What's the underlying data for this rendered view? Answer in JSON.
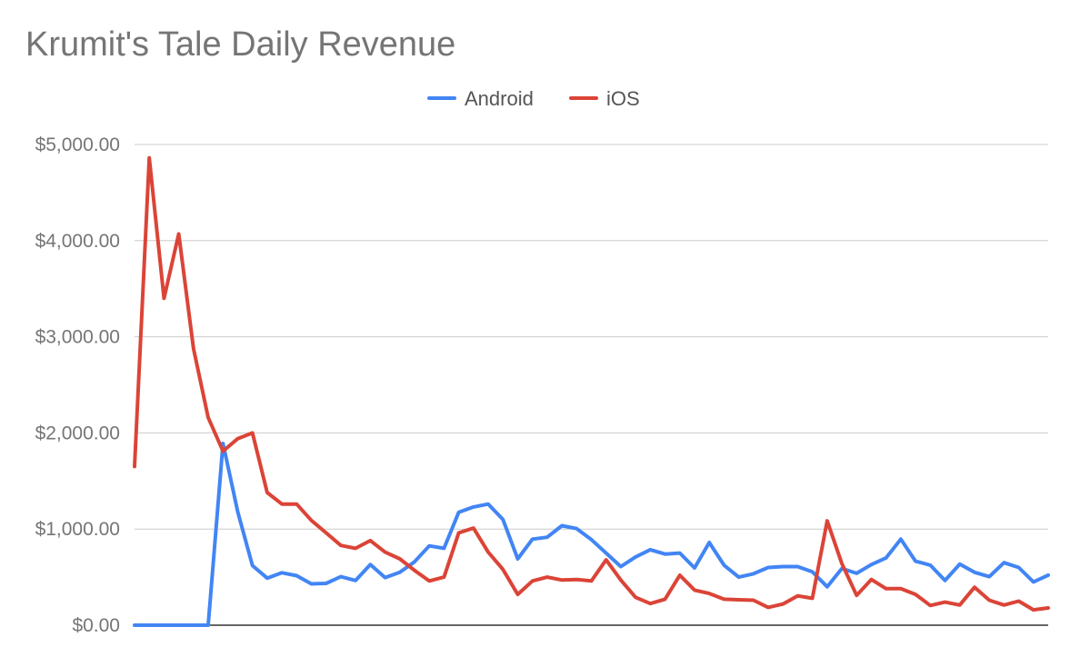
{
  "chart_data": {
    "type": "line",
    "title": "Krumit's Tale Daily Revenue",
    "xlabel": "",
    "ylabel": "",
    "ylim": [
      0,
      5000
    ],
    "yticks": [
      {
        "value": 0,
        "label": "$0.00"
      },
      {
        "value": 1000,
        "label": "$1,000.00"
      },
      {
        "value": 2000,
        "label": "$2,000.00"
      },
      {
        "value": 3000,
        "label": "$3,000.00"
      },
      {
        "value": 4000,
        "label": "$4,000.00"
      },
      {
        "value": 5000,
        "label": "$5,000.00"
      }
    ],
    "grid": true,
    "legend_position": "top",
    "x": [
      1,
      2,
      3,
      4,
      5,
      6,
      7,
      8,
      9,
      10,
      11,
      12,
      13,
      14,
      15,
      16,
      17,
      18,
      19,
      20,
      21,
      22,
      23,
      24,
      25,
      26,
      27,
      28,
      29,
      30,
      31,
      32,
      33,
      34,
      35,
      36,
      37,
      38,
      39,
      40,
      41,
      42,
      43,
      44,
      45,
      46,
      47,
      48,
      49,
      50,
      51,
      52,
      53,
      54,
      55,
      56,
      57,
      58,
      59,
      60,
      61,
      62,
      63
    ],
    "series": [
      {
        "name": "Android",
        "color": "#4285F4",
        "values": [
          0,
          0,
          0,
          0,
          0,
          0,
          1890,
          1180,
          620,
          490,
          545,
          515,
          430,
          435,
          505,
          465,
          630,
          495,
          550,
          660,
          825,
          800,
          1175,
          1230,
          1260,
          1100,
          690,
          895,
          915,
          1035,
          1005,
          890,
          750,
          610,
          710,
          785,
          740,
          750,
          595,
          860,
          625,
          500,
          535,
          600,
          610,
          610,
          555,
          400,
          590,
          540,
          630,
          700,
          895,
          665,
          625,
          465,
          635,
          550,
          505,
          650,
          600,
          450,
          520
        ]
      },
      {
        "name": "iOS",
        "color": "#DB4437",
        "values": [
          1650,
          4860,
          3400,
          4070,
          2880,
          2160,
          1810,
          1940,
          2000,
          1380,
          1260,
          1260,
          1090,
          960,
          830,
          800,
          880,
          760,
          690,
          570,
          460,
          500,
          960,
          1010,
          760,
          580,
          320,
          460,
          500,
          470,
          475,
          460,
          680,
          470,
          290,
          225,
          270,
          520,
          365,
          330,
          270,
          265,
          260,
          185,
          220,
          305,
          280,
          1085,
          640,
          310,
          475,
          380,
          380,
          320,
          205,
          240,
          210,
          395,
          260,
          210,
          250,
          160,
          180
        ]
      }
    ]
  }
}
